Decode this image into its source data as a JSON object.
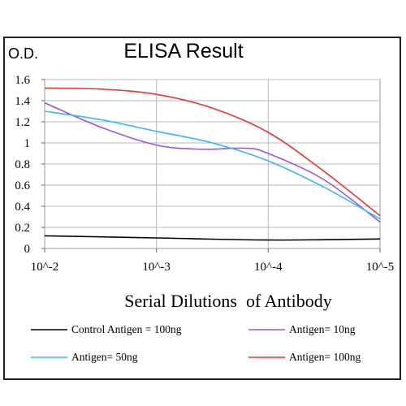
{
  "chart_data": {
    "type": "line",
    "title": "ELISA Result",
    "ylabel": "O.D.",
    "xlabel": "Serial Dilutions  of Antibody",
    "x_ticks": [
      "10^-2",
      "10^-3",
      "10^-4",
      "10^-5"
    ],
    "y_ticks": [
      "0",
      "0.2",
      "0.4",
      "0.6",
      "0.8",
      "1",
      "1.2",
      "1.4",
      "1.6"
    ],
    "ylim": [
      0,
      1.6
    ],
    "x_log_exponent_range": [
      -2,
      -5
    ],
    "grid": true,
    "legend_placement": "bottom",
    "series": [
      {
        "name": "Control Antigen = 100ng",
        "color": "#000000",
        "points": [
          [
            -2.0,
            0.12
          ],
          [
            -3.0,
            0.1
          ],
          [
            -4.0,
            0.08
          ],
          [
            -5.0,
            0.09
          ]
        ]
      },
      {
        "name": "Antigen= 10ng",
        "color": "#9955dd",
        "points": [
          [
            -2.0,
            1.38
          ],
          [
            -2.5,
            1.15
          ],
          [
            -3.0,
            0.98
          ],
          [
            -3.4,
            0.94
          ],
          [
            -3.8,
            0.95
          ],
          [
            -4.0,
            0.9
          ],
          [
            -4.5,
            0.65
          ],
          [
            -5.0,
            0.25
          ]
        ]
      },
      {
        "name": "Antigen= 50ng",
        "color": "#33bbee",
        "points": [
          [
            -2.0,
            1.3
          ],
          [
            -2.5,
            1.22
          ],
          [
            -3.0,
            1.11
          ],
          [
            -3.5,
            1.0
          ],
          [
            -4.0,
            0.83
          ],
          [
            -4.5,
            0.58
          ],
          [
            -5.0,
            0.28
          ]
        ]
      },
      {
        "name": "Antigen= 100ng",
        "color": "#ee3333",
        "points": [
          [
            -2.0,
            1.52
          ],
          [
            -2.5,
            1.51
          ],
          [
            -3.0,
            1.46
          ],
          [
            -3.5,
            1.33
          ],
          [
            -4.0,
            1.1
          ],
          [
            -4.5,
            0.73
          ],
          [
            -5.0,
            0.31
          ]
        ]
      }
    ]
  }
}
